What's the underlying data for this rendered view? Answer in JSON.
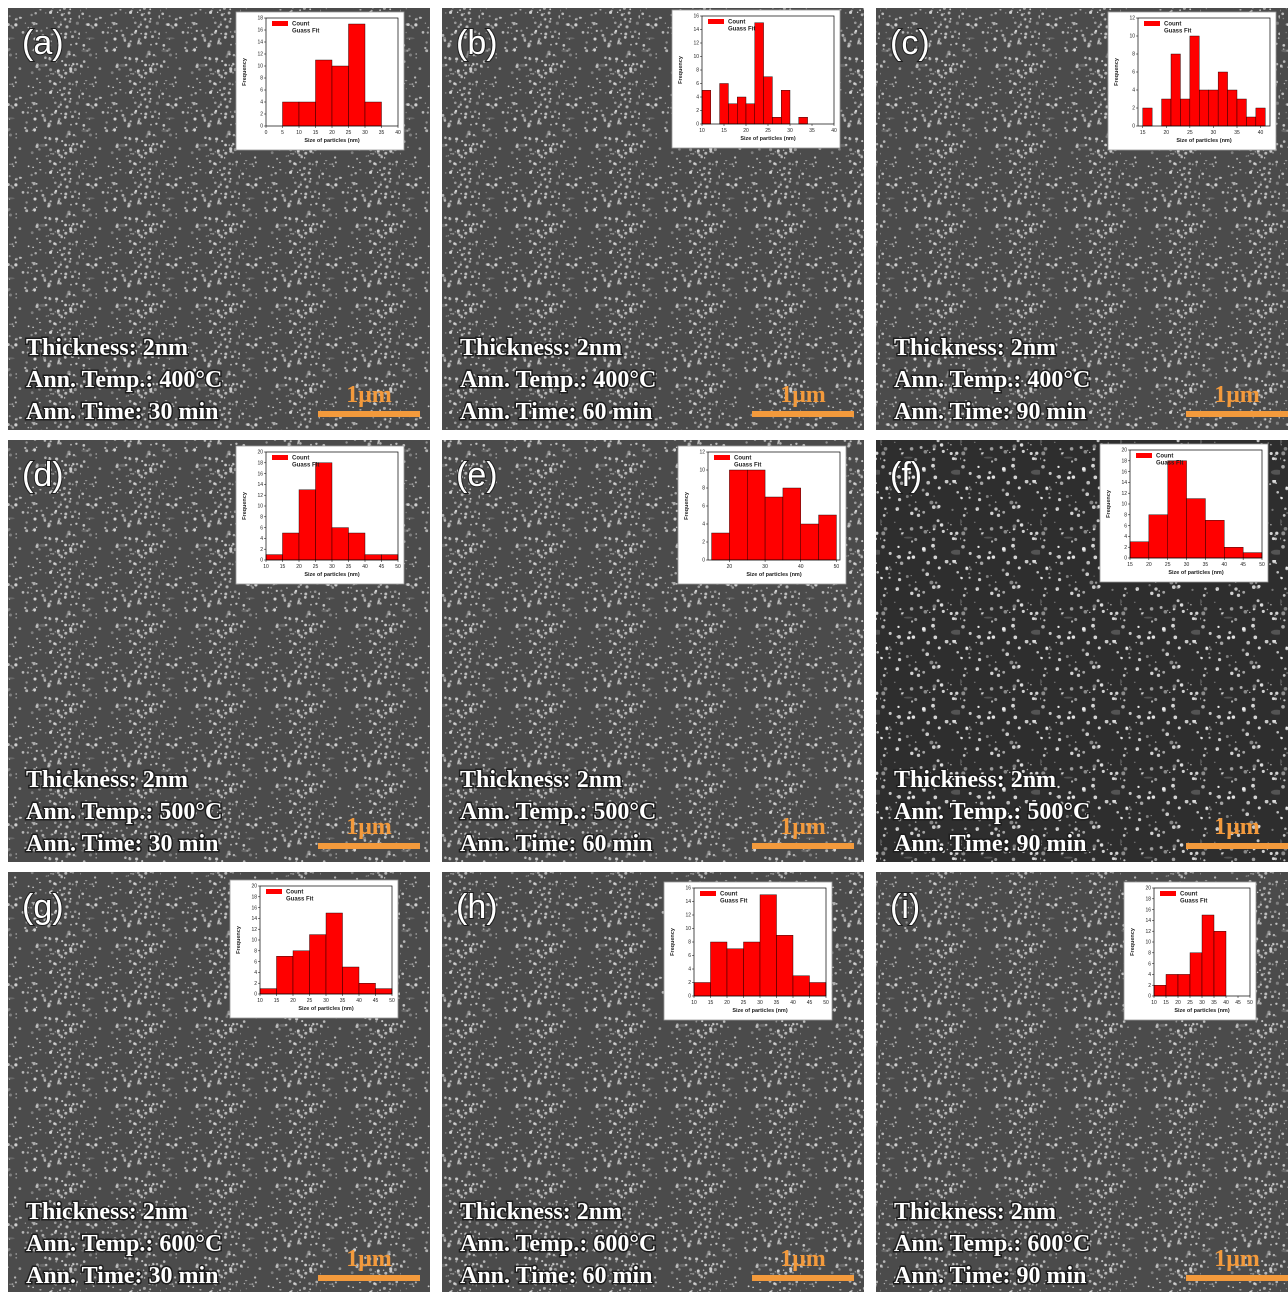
{
  "chart_data": [
    {
      "type": "histogram",
      "panel_label": "(a)",
      "annotations": [
        "Thickness: 2nm",
        "Ann. Temp.: 400°C",
        "Ann. Time: 30 min"
      ],
      "scale_bar": "1μm",
      "x_label": "Size of particles (nm)",
      "y_label": "Frequency",
      "fit_label": "Guass Fit",
      "bins": [
        5,
        10,
        15,
        20,
        25,
        30,
        35
      ],
      "series": [
        {
          "name": "Count",
          "color": "#ff0000",
          "values": [
            4,
            4,
            11,
            10,
            17,
            4
          ]
        }
      ],
      "xlim": [
        0,
        40
      ],
      "xticks": [
        0,
        5,
        10,
        15,
        20,
        25,
        30,
        35,
        40
      ],
      "ylim": [
        0,
        18
      ],
      "yticks": [
        0,
        2,
        4,
        6,
        8,
        10,
        12,
        14,
        16,
        18
      ]
    },
    {
      "type": "histogram",
      "panel_label": "(b)",
      "annotations": [
        "Thickness: 2nm",
        "Ann. Temp.: 400°C",
        "Ann. Time: 60 min"
      ],
      "scale_bar": "1μm",
      "x_label": "Size of particles (nm)",
      "y_label": "Frequency",
      "fit_label": "Guass Fit",
      "bins": [
        10,
        12,
        14,
        16,
        18,
        20,
        22,
        24,
        26,
        28,
        30,
        32,
        34
      ],
      "series": [
        {
          "name": "Count",
          "color": "#ff0000",
          "values": [
            5,
            0,
            6,
            3,
            4,
            3,
            15,
            7,
            1,
            5,
            0,
            1
          ]
        }
      ],
      "xlim": [
        10,
        40
      ],
      "xticks": [
        10,
        15,
        20,
        25,
        30,
        35,
        40
      ],
      "ylim": [
        0,
        16
      ],
      "yticks": [
        0,
        2,
        4,
        6,
        8,
        10,
        12,
        14,
        16
      ]
    },
    {
      "type": "histogram",
      "panel_label": "(c)",
      "annotations": [
        "Thickness: 2nm",
        "Ann. Temp.: 400°C",
        "Ann. Time: 90 min"
      ],
      "scale_bar": "1μm",
      "x_label": "Size of particles (nm)",
      "y_label": "Frequency",
      "fit_label": "Guass Fit",
      "bins": [
        15,
        17,
        19,
        21,
        23,
        25,
        27,
        29,
        31,
        33,
        35,
        37,
        39,
        41
      ],
      "series": [
        {
          "name": "Count",
          "color": "#ff0000",
          "values": [
            2,
            0,
            3,
            8,
            3,
            10,
            4,
            4,
            6,
            4,
            3,
            1,
            2
          ]
        }
      ],
      "xlim": [
        14,
        42
      ],
      "xticks": [
        15,
        20,
        25,
        30,
        35,
        40
      ],
      "ylim": [
        0,
        12
      ],
      "yticks": [
        0,
        2,
        4,
        6,
        8,
        10,
        12
      ]
    },
    {
      "type": "histogram",
      "panel_label": "(d)",
      "annotations": [
        "Thickness: 2nm",
        "Ann. Temp.: 500°C",
        "Ann. Time: 30 min"
      ],
      "scale_bar": "1μm",
      "x_label": "Size of particles (nm)",
      "y_label": "Frequency",
      "fit_label": "Guass Fit",
      "bins": [
        10,
        15,
        20,
        25,
        30,
        35,
        40,
        45,
        50
      ],
      "series": [
        {
          "name": "Count",
          "color": "#ff0000",
          "values": [
            1,
            5,
            13,
            18,
            6,
            5,
            1,
            1
          ]
        }
      ],
      "xlim": [
        10,
        50
      ],
      "xticks": [
        10,
        15,
        20,
        25,
        30,
        35,
        40,
        45,
        50
      ],
      "ylim": [
        0,
        20
      ],
      "yticks": [
        0,
        2,
        4,
        6,
        8,
        10,
        12,
        14,
        16,
        18,
        20
      ]
    },
    {
      "type": "histogram",
      "panel_label": "(e)",
      "annotations": [
        "Thickness: 2nm",
        "Ann. Temp.: 500°C",
        "Ann. Time: 60 min"
      ],
      "scale_bar": "1μm",
      "x_label": "Size of particles (nm)",
      "y_label": "Frequency",
      "fit_label": "Guass Fit",
      "bins": [
        15,
        20,
        25,
        30,
        35,
        40,
        45,
        50
      ],
      "series": [
        {
          "name": "Count",
          "color": "#ff0000",
          "values": [
            3,
            10,
            10,
            7,
            8,
            4,
            5
          ]
        }
      ],
      "xlim": [
        14,
        51
      ],
      "xticks": [
        20,
        30,
        40,
        50
      ],
      "ylim": [
        0,
        12
      ],
      "yticks": [
        0,
        2,
        4,
        6,
        8,
        10,
        12
      ]
    },
    {
      "type": "histogram",
      "panel_label": "(f)",
      "annotations": [
        "Thickness: 2nm",
        "Ann. Temp.: 500°C",
        "Ann. Time: 90 min"
      ],
      "scale_bar": "1μm",
      "x_label": "Size of particles (nm)",
      "y_label": "Frequency",
      "fit_label": "Guass Fit",
      "bins": [
        15,
        20,
        25,
        30,
        35,
        40,
        45,
        50
      ],
      "series": [
        {
          "name": "Count",
          "color": "#ff0000",
          "values": [
            3,
            8,
            18,
            11,
            7,
            2,
            1
          ]
        }
      ],
      "xlim": [
        15,
        50
      ],
      "xticks": [
        15,
        20,
        25,
        30,
        35,
        40,
        45,
        50
      ],
      "ylim": [
        0,
        20
      ],
      "yticks": [
        0,
        2,
        4,
        6,
        8,
        10,
        12,
        14,
        16,
        18,
        20
      ]
    },
    {
      "type": "histogram",
      "panel_label": "(g)",
      "annotations": [
        "Thickness: 2nm",
        "Ann. Temp.: 600°C",
        "Ann. Time: 30 min"
      ],
      "scale_bar": "1μm",
      "x_label": "Size of particles (nm)",
      "y_label": "Frequency",
      "fit_label": "Guass Fit",
      "bins": [
        10,
        15,
        20,
        25,
        30,
        35,
        40,
        45,
        50
      ],
      "series": [
        {
          "name": "Count",
          "color": "#ff0000",
          "values": [
            1,
            7,
            8,
            11,
            15,
            5,
            2,
            1
          ]
        }
      ],
      "xlim": [
        10,
        50
      ],
      "xticks": [
        10,
        15,
        20,
        25,
        30,
        35,
        40,
        45,
        50
      ],
      "ylim": [
        0,
        20
      ],
      "yticks": [
        0,
        2,
        4,
        6,
        8,
        10,
        12,
        14,
        16,
        18,
        20
      ]
    },
    {
      "type": "histogram",
      "panel_label": "(h)",
      "annotations": [
        "Thickness: 2nm",
        "Ann. Temp.: 600°C",
        "Ann. Time: 60 min"
      ],
      "scale_bar": "1μm",
      "x_label": "Size of particles (nm)",
      "y_label": "Frequency",
      "fit_label": "Guass Fit",
      "bins": [
        10,
        15,
        20,
        25,
        30,
        35,
        40,
        45,
        50
      ],
      "series": [
        {
          "name": "Count",
          "color": "#ff0000",
          "values": [
            2,
            8,
            7,
            8,
            15,
            9,
            3,
            2
          ]
        }
      ],
      "xlim": [
        10,
        50
      ],
      "xticks": [
        10,
        15,
        20,
        25,
        30,
        35,
        40,
        45,
        50
      ],
      "ylim": [
        0,
        16
      ],
      "yticks": [
        0,
        2,
        4,
        6,
        8,
        10,
        12,
        14,
        16
      ]
    },
    {
      "type": "histogram",
      "panel_label": "(i)",
      "annotations": [
        "Thickness: 2nm",
        "Ann. Temp.: 600°C",
        "Ann. Time: 90 min"
      ],
      "scale_bar": "1μm",
      "x_label": "Size of particles (nm)",
      "y_label": "Frequency",
      "fit_label": "Guass Fit",
      "bins": [
        10,
        15,
        20,
        25,
        30,
        35,
        40
      ],
      "series": [
        {
          "name": "Count",
          "color": "#ff0000",
          "values": [
            2,
            4,
            4,
            8,
            15,
            12
          ]
        }
      ],
      "xlim": [
        10,
        50
      ],
      "xticks": [
        10,
        15,
        20,
        25,
        30,
        35,
        40,
        45,
        50
      ],
      "ylim": [
        0,
        20
      ],
      "yticks": [
        0,
        2,
        4,
        6,
        8,
        10,
        12,
        14,
        16,
        18,
        20
      ]
    }
  ]
}
